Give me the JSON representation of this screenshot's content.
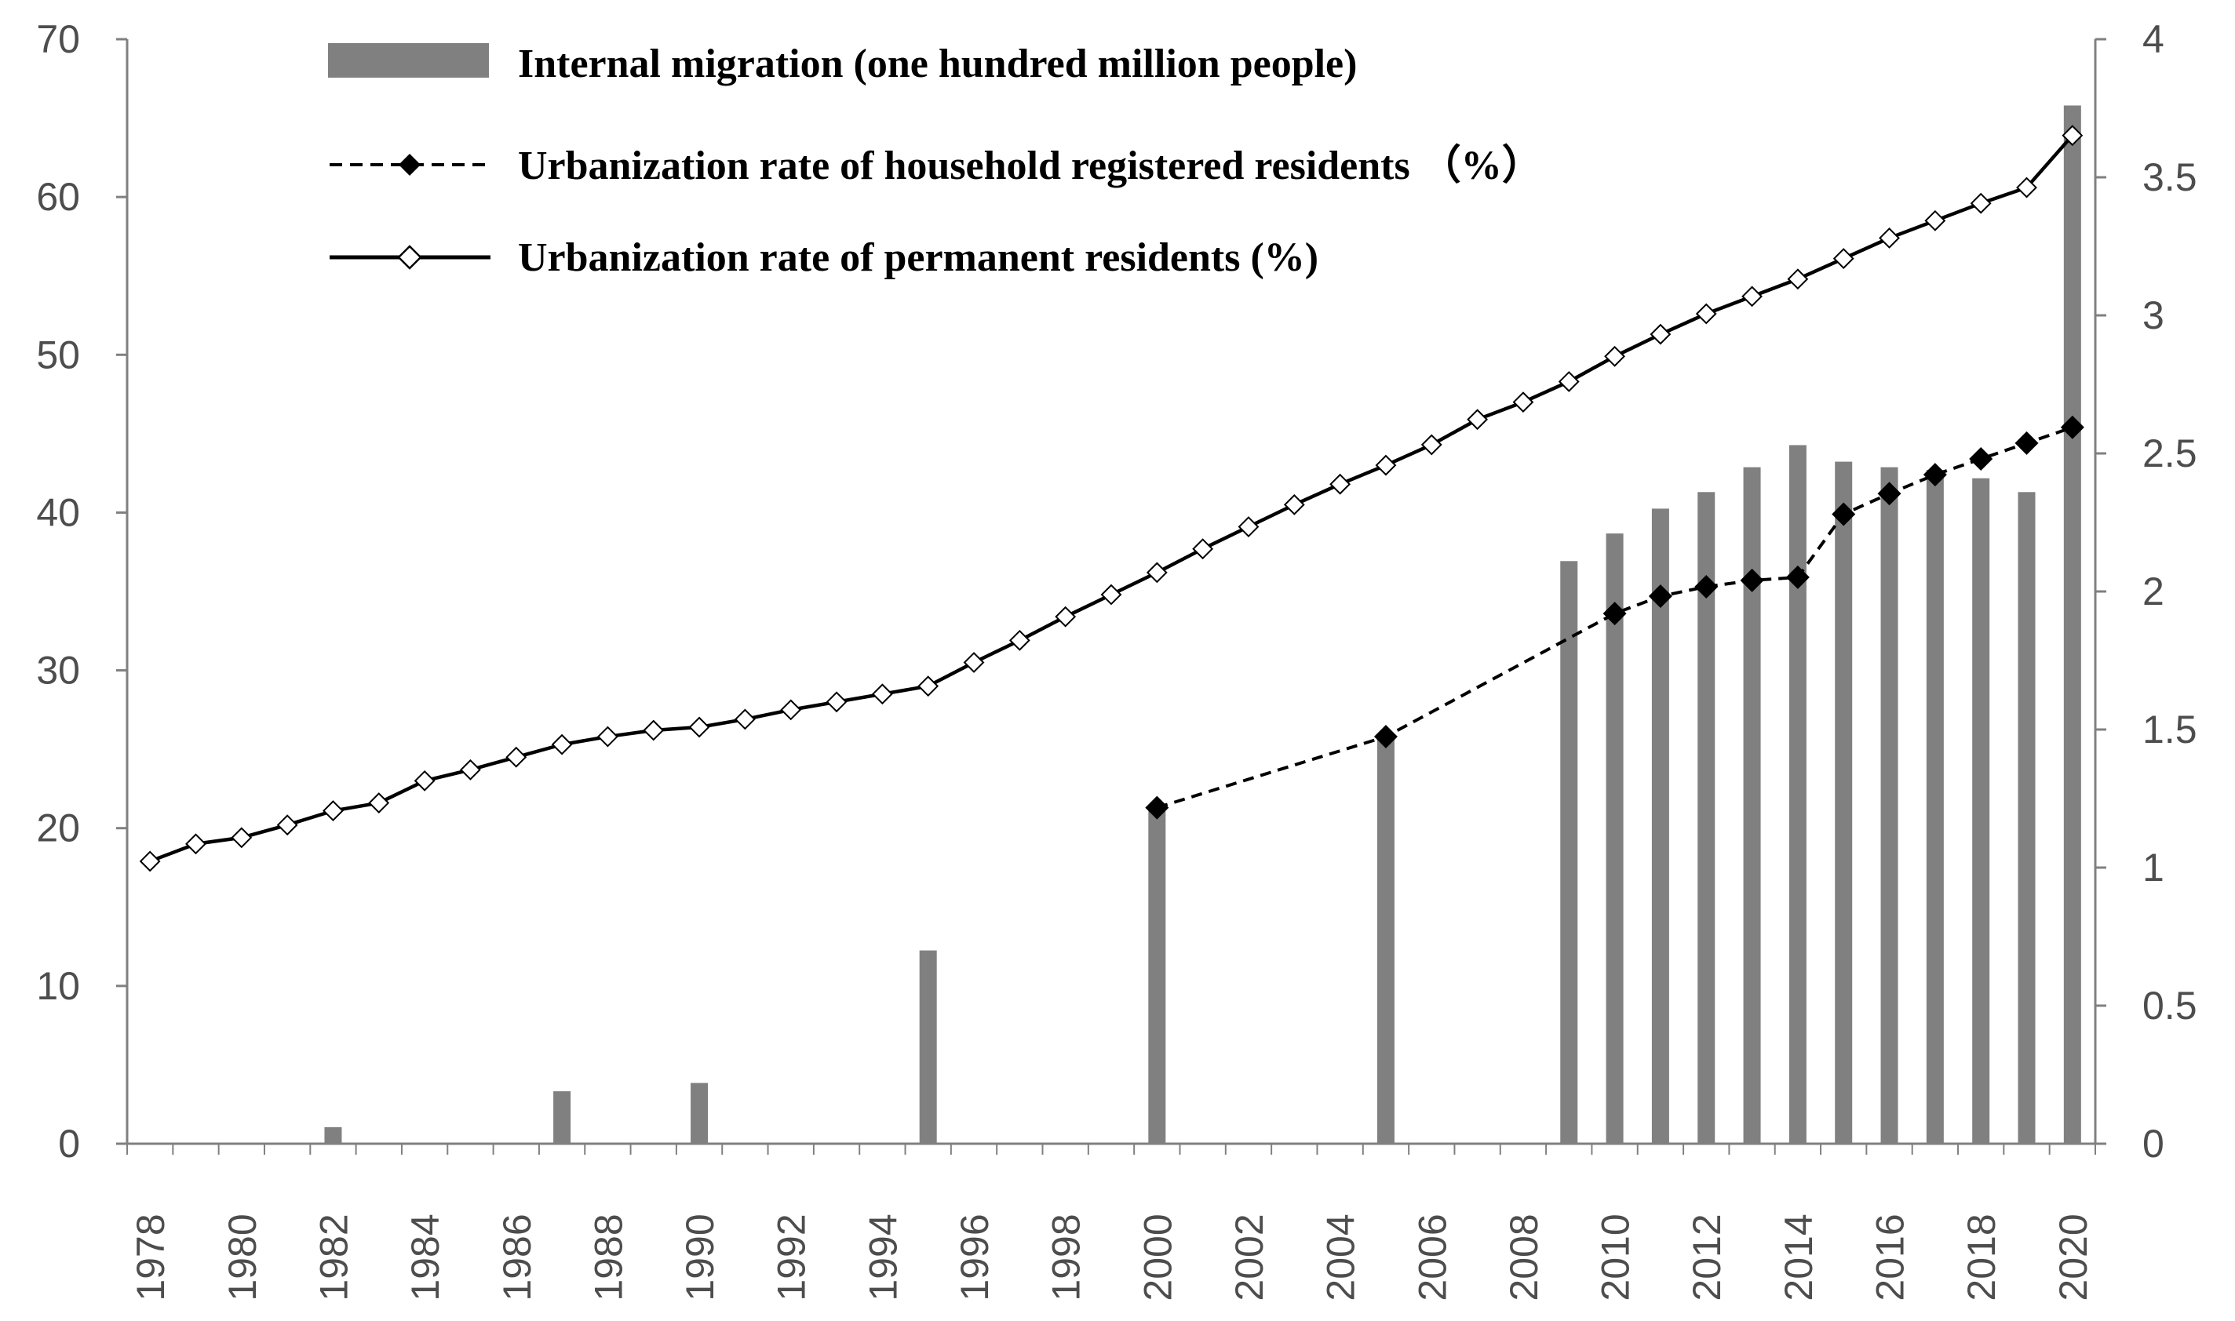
{
  "chart_data": {
    "type": "bar+line",
    "title": "",
    "xlabel": "",
    "ylabel_left": "",
    "ylabel_right": "",
    "y_left_range": [
      0,
      70
    ],
    "y_left_ticks": [
      "0",
      "10",
      "20",
      "30",
      "40",
      "50",
      "60",
      "70"
    ],
    "y_right_range": [
      0,
      4
    ],
    "y_right_ticks": [
      "0",
      "0.5",
      "1",
      "1.5",
      "2",
      "2.5",
      "3",
      "3.5",
      "4"
    ],
    "x_tick_labels": [
      "1978",
      "1980",
      "1982",
      "1984",
      "1986",
      "1988",
      "1990",
      "1992",
      "1994",
      "1996",
      "1998",
      "2000",
      "2002",
      "2004",
      "2006",
      "2008",
      "2010",
      "2012",
      "2014",
      "2016",
      "2018",
      "2020"
    ],
    "grid": false,
    "legend_position": "top",
    "colors": {
      "bar": "#808080",
      "line": "#000000",
      "axis": "#808080",
      "tick_text": "#4d4d4d"
    },
    "series": [
      {
        "name": "Internal migration (one hundred million people)",
        "kind": "bar",
        "axis": "right",
        "points": [
          {
            "year": 1982,
            "value": 0.06
          },
          {
            "year": 1987,
            "value": 0.19
          },
          {
            "year": 1990,
            "value": 0.22
          },
          {
            "year": 1995,
            "value": 0.7
          },
          {
            "year": 2000,
            "value": 1.21
          },
          {
            "year": 2005,
            "value": 1.47
          },
          {
            "year": 2009,
            "value": 2.11
          },
          {
            "year": 2010,
            "value": 2.21
          },
          {
            "year": 2011,
            "value": 2.3
          },
          {
            "year": 2012,
            "value": 2.36
          },
          {
            "year": 2013,
            "value": 2.45
          },
          {
            "year": 2014,
            "value": 2.53
          },
          {
            "year": 2015,
            "value": 2.47
          },
          {
            "year": 2016,
            "value": 2.45
          },
          {
            "year": 2017,
            "value": 2.44
          },
          {
            "year": 2018,
            "value": 2.41
          },
          {
            "year": 2019,
            "value": 2.36
          },
          {
            "year": 2020,
            "value": 3.76
          }
        ]
      },
      {
        "name": "Urbanization rate of household registered residents  （%）",
        "kind": "line-dashed",
        "axis": "left",
        "marker": "filled-diamond",
        "points": [
          {
            "year": 2000,
            "value": 21.3
          },
          {
            "year": 2005,
            "value": 25.8
          },
          {
            "year": 2010,
            "value": 33.6
          },
          {
            "year": 2011,
            "value": 34.7
          },
          {
            "year": 2012,
            "value": 35.3
          },
          {
            "year": 2013,
            "value": 35.7
          },
          {
            "year": 2014,
            "value": 35.9
          },
          {
            "year": 2015,
            "value": 39.9
          },
          {
            "year": 2016,
            "value": 41.2
          },
          {
            "year": 2017,
            "value": 42.4
          },
          {
            "year": 2018,
            "value": 43.4
          },
          {
            "year": 2019,
            "value": 44.4
          },
          {
            "year": 2020,
            "value": 45.4
          }
        ]
      },
      {
        "name": "Urbanization rate of permanent residents (%)",
        "kind": "line-solid",
        "axis": "left",
        "marker": "hollow-diamond",
        "points": [
          {
            "year": 1978,
            "value": 17.9
          },
          {
            "year": 1979,
            "value": 19.0
          },
          {
            "year": 1980,
            "value": 19.4
          },
          {
            "year": 1981,
            "value": 20.2
          },
          {
            "year": 1982,
            "value": 21.1
          },
          {
            "year": 1983,
            "value": 21.6
          },
          {
            "year": 1984,
            "value": 23.0
          },
          {
            "year": 1985,
            "value": 23.7
          },
          {
            "year": 1986,
            "value": 24.5
          },
          {
            "year": 1987,
            "value": 25.3
          },
          {
            "year": 1988,
            "value": 25.8
          },
          {
            "year": 1989,
            "value": 26.2
          },
          {
            "year": 1990,
            "value": 26.4
          },
          {
            "year": 1991,
            "value": 26.9
          },
          {
            "year": 1992,
            "value": 27.5
          },
          {
            "year": 1993,
            "value": 28.0
          },
          {
            "year": 1994,
            "value": 28.5
          },
          {
            "year": 1995,
            "value": 29.0
          },
          {
            "year": 1996,
            "value": 30.5
          },
          {
            "year": 1997,
            "value": 31.9
          },
          {
            "year": 1998,
            "value": 33.4
          },
          {
            "year": 1999,
            "value": 34.8
          },
          {
            "year": 2000,
            "value": 36.2
          },
          {
            "year": 2001,
            "value": 37.7
          },
          {
            "year": 2002,
            "value": 39.1
          },
          {
            "year": 2003,
            "value": 40.5
          },
          {
            "year": 2004,
            "value": 41.8
          },
          {
            "year": 2005,
            "value": 43.0
          },
          {
            "year": 2006,
            "value": 44.3
          },
          {
            "year": 2007,
            "value": 45.9
          },
          {
            "year": 2008,
            "value": 47.0
          },
          {
            "year": 2009,
            "value": 48.3
          },
          {
            "year": 2010,
            "value": 49.9
          },
          {
            "year": 2011,
            "value": 51.3
          },
          {
            "year": 2012,
            "value": 52.6
          },
          {
            "year": 2013,
            "value": 53.7
          },
          {
            "year": 2014,
            "value": 54.8
          },
          {
            "year": 2015,
            "value": 56.1
          },
          {
            "year": 2016,
            "value": 57.4
          },
          {
            "year": 2017,
            "value": 58.5
          },
          {
            "year": 2018,
            "value": 59.6
          },
          {
            "year": 2019,
            "value": 60.6
          },
          {
            "year": 2020,
            "value": 63.9
          }
        ]
      }
    ]
  }
}
